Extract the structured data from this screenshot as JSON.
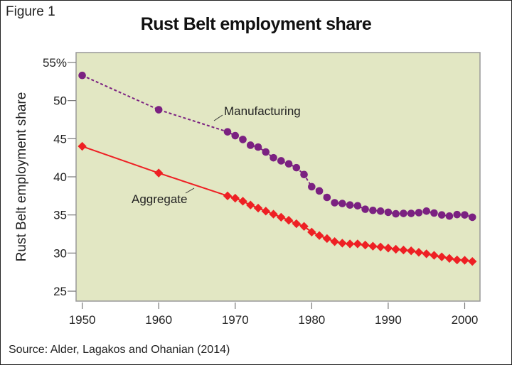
{
  "figure_label": "Figure 1",
  "source": "Source: Alder, Lagakos and Ohanian (2014)",
  "colors": {
    "background": "#e2e7c3",
    "manufacturing": "#7b2181",
    "aggregate": "#ee2024"
  },
  "chart_data": {
    "type": "line",
    "title": "Rust Belt employment share",
    "xlabel": "",
    "ylabel": "Rust Belt employment share",
    "xlim": [
      1949.2,
      2002
    ],
    "ylim": [
      23.7,
      56.3
    ],
    "xticks": [
      1950,
      1960,
      1970,
      1980,
      1990,
      2000
    ],
    "xtick_labels": [
      "1950",
      "1960",
      "1970",
      "1980",
      "1990",
      "2000"
    ],
    "yticks": [
      25,
      30,
      35,
      40,
      45,
      50,
      55
    ],
    "ytick_labels": [
      "25",
      "30",
      "35",
      "40",
      "45",
      "50",
      "55%"
    ],
    "grid": false,
    "series": [
      {
        "name": "Manufacturing",
        "marker": "circle",
        "x": [
          1950,
          1960,
          1969,
          1970,
          1971,
          1972,
          1973,
          1974,
          1975,
          1976,
          1977,
          1978,
          1979,
          1980,
          1981,
          1982,
          1983,
          1984,
          1985,
          1986,
          1987,
          1988,
          1989,
          1990,
          1991,
          1992,
          1993,
          1994,
          1995,
          1996,
          1997,
          1998,
          1999,
          2000,
          2001
        ],
        "y": [
          53.3,
          48.8,
          45.9,
          45.4,
          44.9,
          44.15,
          43.9,
          43.25,
          42.5,
          42.1,
          41.7,
          41.2,
          40.3,
          38.7,
          38.15,
          37.3,
          36.6,
          36.5,
          36.3,
          36.2,
          35.75,
          35.6,
          35.5,
          35.35,
          35.15,
          35.2,
          35.2,
          35.3,
          35.5,
          35.25,
          35.0,
          34.85,
          35.05,
          35.0,
          34.7
        ]
      },
      {
        "name": "Aggregate",
        "marker": "diamond",
        "x": [
          1950,
          1960,
          1969,
          1970,
          1971,
          1972,
          1973,
          1974,
          1975,
          1976,
          1977,
          1978,
          1979,
          1980,
          1981,
          1982,
          1983,
          1984,
          1985,
          1986,
          1987,
          1988,
          1989,
          1990,
          1991,
          1992,
          1993,
          1994,
          1995,
          1996,
          1997,
          1998,
          1999,
          2000,
          2001
        ],
        "y": [
          44.0,
          40.5,
          37.5,
          37.2,
          36.8,
          36.3,
          35.9,
          35.5,
          35.1,
          34.7,
          34.3,
          33.85,
          33.5,
          32.75,
          32.3,
          31.9,
          31.5,
          31.3,
          31.2,
          31.2,
          31.05,
          30.9,
          30.8,
          30.65,
          30.5,
          30.4,
          30.3,
          30.1,
          29.9,
          29.7,
          29.5,
          29.3,
          29.1,
          29.05,
          28.9
        ]
      }
    ]
  }
}
